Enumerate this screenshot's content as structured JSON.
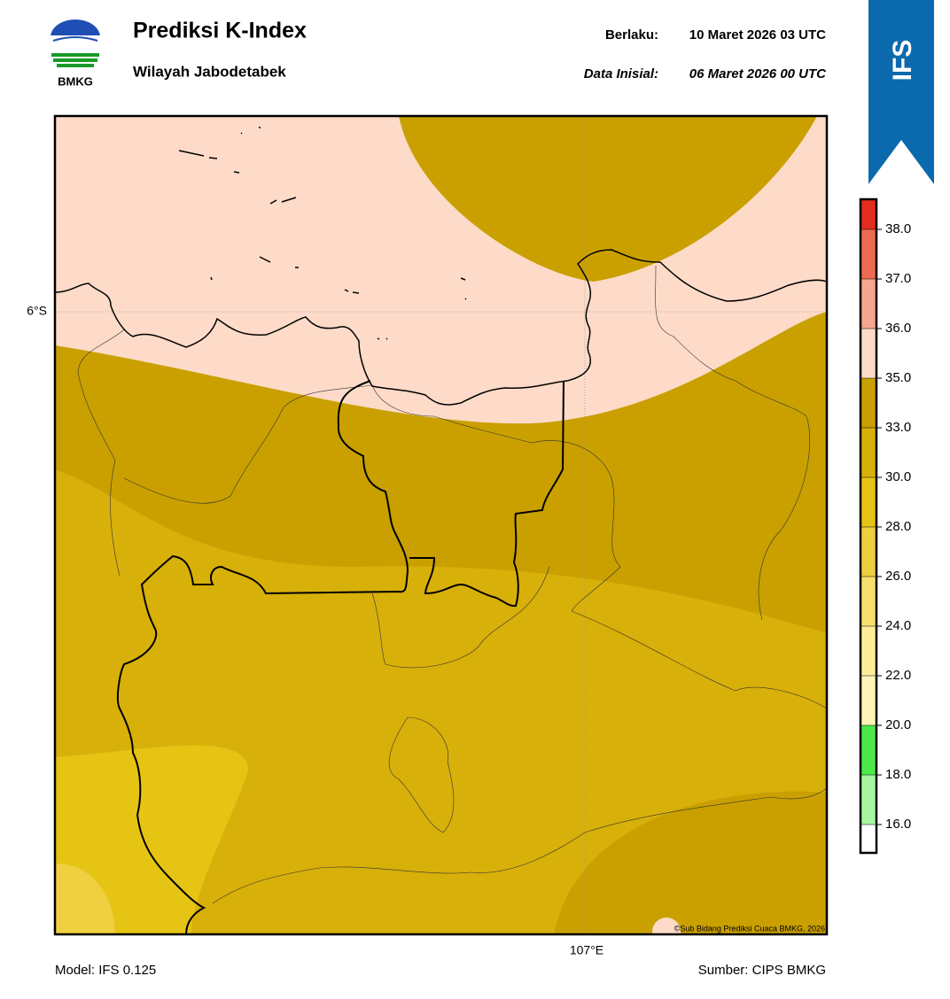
{
  "header": {
    "title": "Prediksi K-Index",
    "subtitle": "Wilayah Jabodetabek",
    "valid_label": "Berlaku:",
    "valid_time": "10 Maret 2026 03 UTC",
    "init_label": "Data Inisial:",
    "init_time": "06 Maret 2026 00 UTC"
  },
  "logo": {
    "text": "BMKG"
  },
  "badge": {
    "text": "IFS"
  },
  "map": {
    "lat_label": "6°S",
    "lon_label": "107°E",
    "credit": "©Sub Bidang Prediksi Cuaca BMKG, 2026"
  },
  "colorbar": {
    "colors": [
      "#ffffff",
      "#a8f5a0",
      "#4de84a",
      "#fff5b8",
      "#ffec99",
      "#f8df6e",
      "#efcf40",
      "#e6c414",
      "#d8b00a",
      "#c9a000",
      "#fddbc8",
      "#f6a58e",
      "#ee6a52",
      "#e42d1e"
    ],
    "ticks": [
      {
        "value": 16,
        "label": "16.0"
      },
      {
        "value": 18,
        "label": "18.0"
      },
      {
        "value": 20,
        "label": "20.0"
      },
      {
        "value": 22,
        "label": "22.0"
      },
      {
        "value": 24,
        "label": "24.0"
      },
      {
        "value": 26,
        "label": "26.0"
      },
      {
        "value": 28,
        "label": "28.0"
      },
      {
        "value": 30,
        "label": "30.0"
      },
      {
        "value": 33,
        "label": "33.0"
      },
      {
        "value": 35,
        "label": "35.0"
      },
      {
        "value": 36,
        "label": "36.0"
      },
      {
        "value": 37,
        "label": "37.0"
      },
      {
        "value": 38,
        "label": "38.0"
      }
    ]
  },
  "footer": {
    "model": "Model: IFS 0.125",
    "source": "Sumber: CIPS BMKG"
  }
}
